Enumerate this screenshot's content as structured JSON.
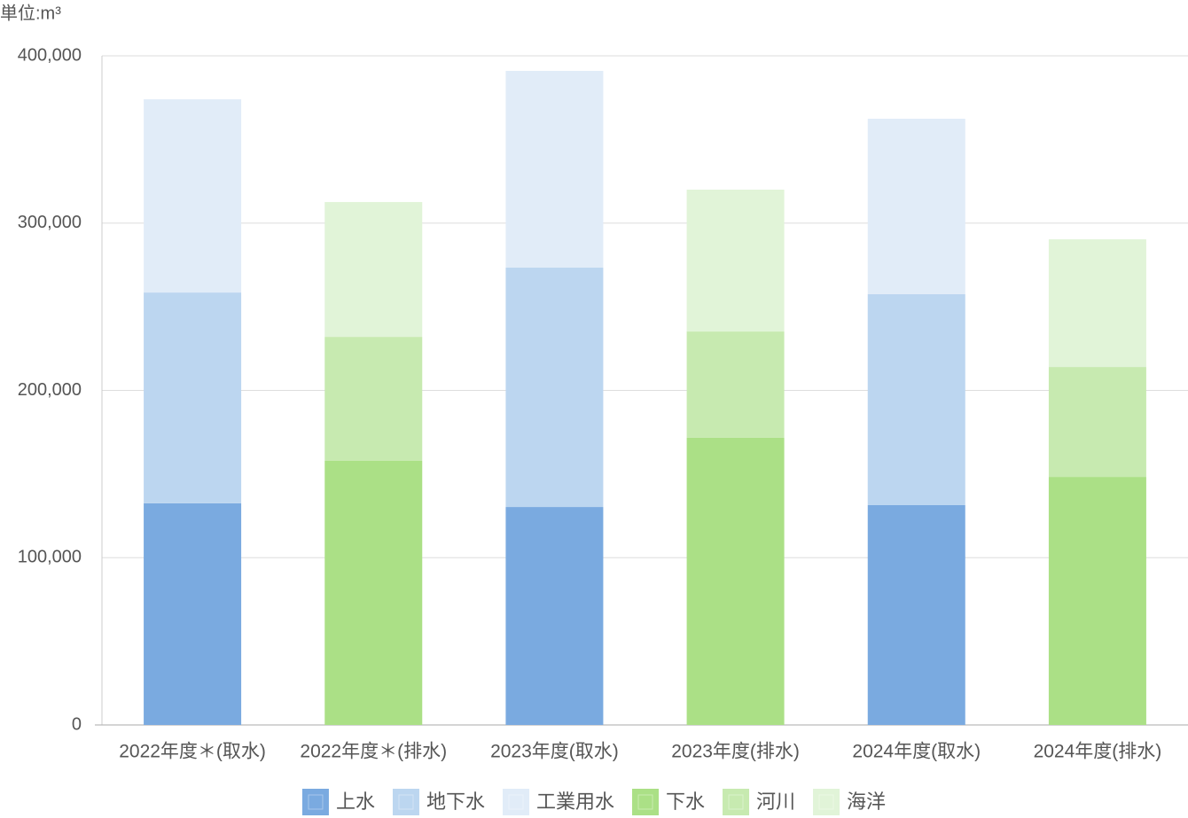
{
  "chart_data": {
    "type": "stacked-bar",
    "title": "単位:m³",
    "categories": [
      "2022年度＊(取水)",
      "2022年度＊(排水)",
      "2023年度(取水)",
      "2023年度(排水)",
      "2024年度(取水)",
      "2024年度(排水)"
    ],
    "series": [
      {
        "name": "上水",
        "color": "#7aaae0",
        "values": [
          132500,
          null,
          130300,
          null,
          131400,
          null
        ]
      },
      {
        "name": "地下水",
        "color": "#bcd6f0",
        "values": [
          126000,
          null,
          143100,
          null,
          126100,
          null
        ]
      },
      {
        "name": "工業用水",
        "color": "#e1ecf8",
        "values": [
          115500,
          null,
          117600,
          null,
          104900,
          null
        ]
      },
      {
        "name": "下水",
        "color": "#abe086",
        "values": [
          null,
          157900,
          null,
          171700,
          null,
          148300
        ]
      },
      {
        "name": "河川",
        "color": "#c7eab0",
        "values": [
          null,
          74100,
          null,
          63500,
          null,
          65700
        ]
      },
      {
        "name": "海洋",
        "color": "#e1f4d8",
        "values": [
          null,
          80600,
          null,
          84800,
          null,
          76300
        ]
      }
    ],
    "ylim": [
      0,
      400000
    ],
    "yticks": [
      0,
      {
        "value": 100000,
        "label": "100,000"
      },
      {
        "value": 200000,
        "label": "200,000"
      },
      {
        "value": 300000,
        "label": "300,000"
      },
      {
        "value": 400000,
        "label": "400,000"
      }
    ],
    "grid": true
  }
}
